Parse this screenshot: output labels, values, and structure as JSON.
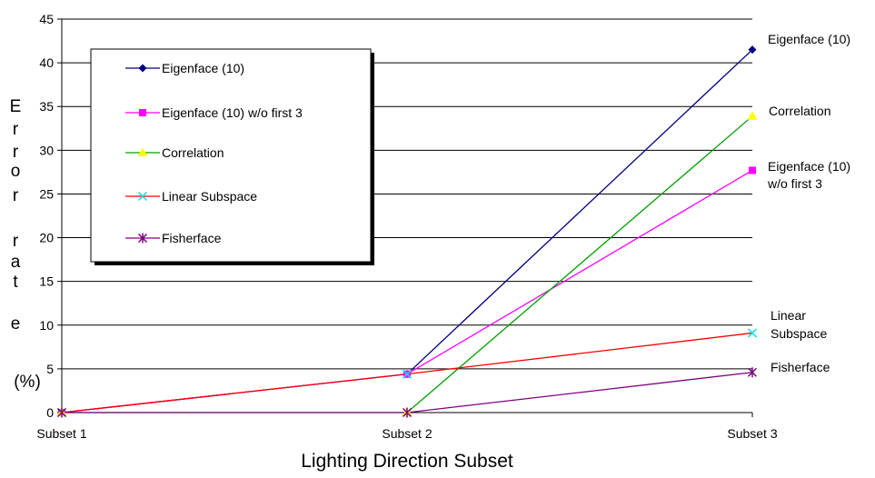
{
  "chart_data": {
    "type": "line",
    "title": "",
    "xlabel": "Lighting Direction Subset",
    "ylabel_letters": [
      "E",
      "r",
      "r",
      "o",
      "r",
      "r",
      "a",
      "t",
      "e"
    ],
    "ylabel_unit": "(%)",
    "categories": [
      "Subset 1",
      "Subset 2",
      "Subset 3"
    ],
    "ylim": [
      0,
      45
    ],
    "yticks": [
      0,
      5,
      10,
      15,
      20,
      25,
      30,
      35,
      40,
      45
    ],
    "grid": "horizontal",
    "legend_position": "top-left (inside plot)",
    "series": [
      {
        "name": "Eigenface (10)",
        "end_label": [
          "Eigenface (10)"
        ],
        "values": [
          0,
          4.4,
          41.5
        ],
        "color": "#000080",
        "marker": "diamond"
      },
      {
        "name": "Eigenface (10) w/o first 3",
        "end_label": [
          "Eigenface (10)",
          "w/o first 3"
        ],
        "values": [
          0,
          4.4,
          27.7
        ],
        "color": "#ff00ff",
        "marker": "square"
      },
      {
        "name": "Correlation",
        "end_label": [
          "Correlation"
        ],
        "values": [
          0,
          0,
          33.9
        ],
        "color": "#00a000",
        "line_color": "#00a000",
        "marker_color": "#ffff00",
        "marker": "triangle"
      },
      {
        "name": "Linear Subspace",
        "end_label": [
          "Linear",
          "Subspace"
        ],
        "values": [
          0,
          4.4,
          9.1
        ],
        "color": "#ff0000",
        "line_color": "#ff0000",
        "marker_color": "#00e5e5",
        "marker": "x"
      },
      {
        "name": "Fisherface",
        "end_label": [
          "Fisherface"
        ],
        "values": [
          0,
          0,
          4.6
        ],
        "color": "#800080",
        "marker": "star"
      }
    ]
  }
}
